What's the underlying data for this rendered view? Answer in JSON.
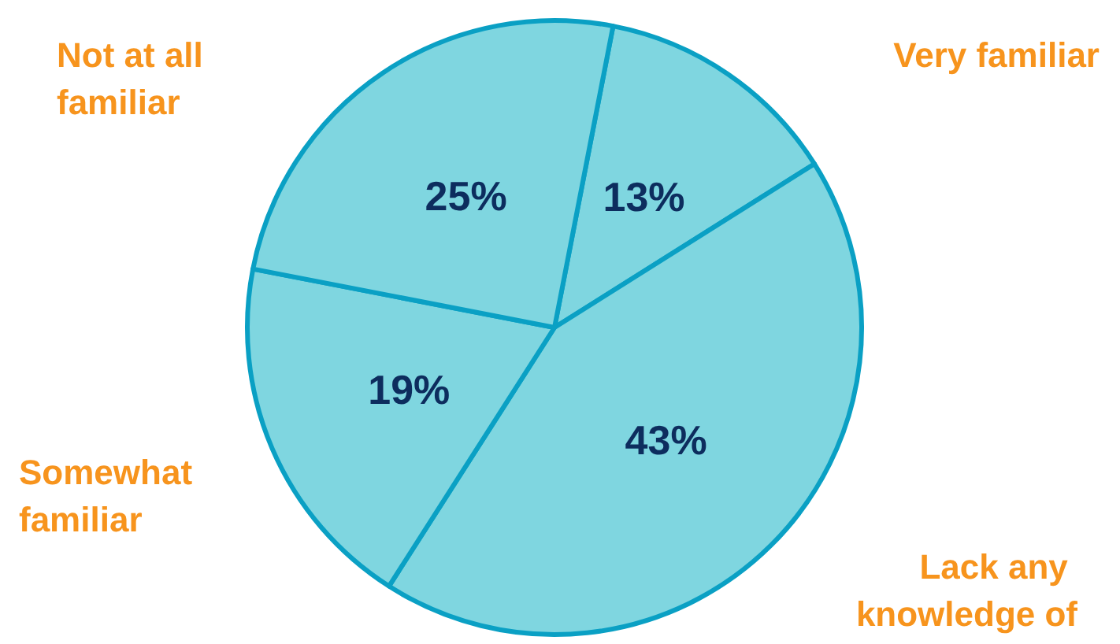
{
  "chart_data": {
    "type": "pie",
    "categories": [
      "Very familiar",
      "Lack any knowledge of",
      "Somewhat familiar",
      "Not at all familiar"
    ],
    "values": [
      13,
      43,
      19,
      25
    ],
    "colors": [
      "#7fd6e0",
      "#7fd6e0",
      "#7fd6e0",
      "#7fd6e0"
    ],
    "value_labels": [
      "13%",
      "43%",
      "19%",
      "25%"
    ],
    "legend": false
  }
}
